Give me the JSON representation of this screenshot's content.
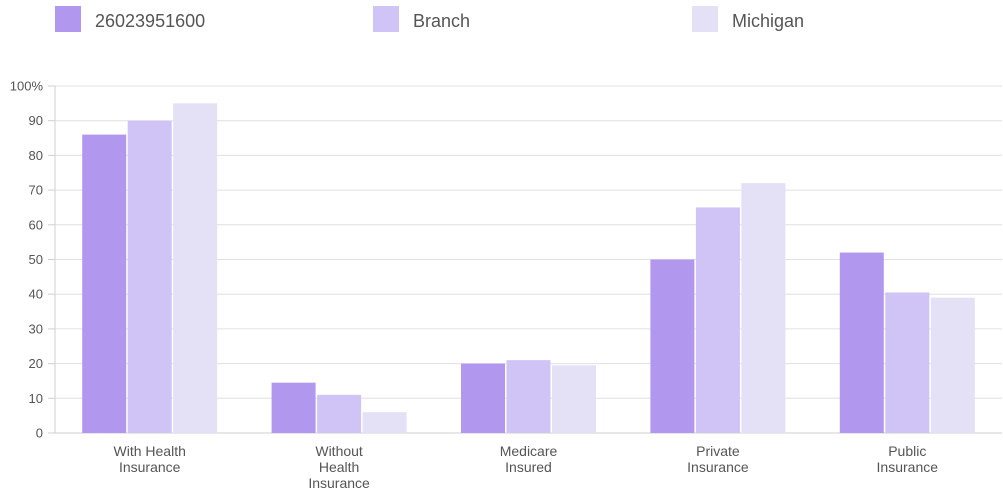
{
  "chart_data": {
    "type": "bar",
    "title": "",
    "xlabel": "",
    "ylabel": "",
    "ylim": [
      0,
      100
    ],
    "y_ticks": [
      {
        "value": 0,
        "label": "0"
      },
      {
        "value": 10,
        "label": "10"
      },
      {
        "value": 20,
        "label": "20"
      },
      {
        "value": 30,
        "label": "30"
      },
      {
        "value": 40,
        "label": "40"
      },
      {
        "value": 50,
        "label": "50"
      },
      {
        "value": 60,
        "label": "60"
      },
      {
        "value": 70,
        "label": "70"
      },
      {
        "value": 80,
        "label": "80"
      },
      {
        "value": 90,
        "label": "90"
      },
      {
        "value": 100,
        "label": "100%"
      }
    ],
    "grid": true,
    "legend_position": "top",
    "categories": [
      [
        "With Health",
        "Insurance"
      ],
      [
        "Without",
        "Health",
        "Insurance"
      ],
      [
        "Medicare",
        "Insured"
      ],
      [
        "Private",
        "Insurance"
      ],
      [
        "Public",
        "Insurance"
      ]
    ],
    "series": [
      {
        "name": "26023951600",
        "color": "#b197ed",
        "values": [
          86,
          14.5,
          20,
          50,
          52
        ]
      },
      {
        "name": "Branch",
        "color": "#d0c3f5",
        "values": [
          90,
          11,
          21,
          65,
          40.5
        ]
      },
      {
        "name": "Michigan",
        "color": "#e4e0f5",
        "values": [
          95,
          6,
          19.5,
          72,
          39
        ]
      }
    ]
  }
}
